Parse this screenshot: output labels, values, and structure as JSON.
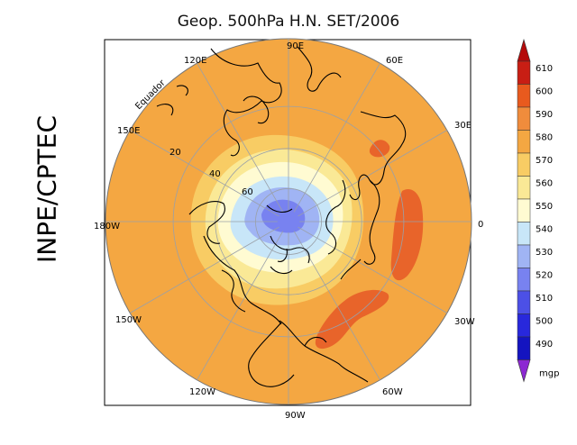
{
  "title": "Geop. 500hPa H.N. SET/2006",
  "side_label": "INPE/CPTEC",
  "equator_label": "Equador",
  "longitude_labels": [
    "90E",
    "60E",
    "30E",
    "0",
    "30W",
    "60W",
    "90W",
    "120W",
    "150W",
    "180W",
    "150E",
    "120E"
  ],
  "latitude_labels": [
    "20",
    "40",
    "60"
  ],
  "colorbar": {
    "unit": "mgp",
    "levels": [
      "610",
      "600",
      "590",
      "580",
      "570",
      "560",
      "550",
      "540",
      "530",
      "520",
      "510",
      "500",
      "490"
    ],
    "colors": [
      "#c81e14",
      "#e85a1e",
      "#f08c3c",
      "#f4a742",
      "#f8cc64",
      "#fae996",
      "#fffbd2",
      "#c8e6f8",
      "#a0b4f4",
      "#7882f0",
      "#4c50e6",
      "#2828dc",
      "#1414c0"
    ],
    "top_arrow_color": "#b40a0a",
    "bottom_arrow_color": "#8c28d2"
  },
  "colors": {
    "ocean_field": "#f4a742",
    "band_570": "#f8cc64",
    "band_560": "#fae996",
    "band_550": "#fffbd2",
    "band_540": "#c8e6f8",
    "band_530": "#a0b4f4",
    "band_520": "#7882f0",
    "high_600": "#e8642a",
    "coast": "#000000",
    "grid": "#9aa0a8"
  }
}
